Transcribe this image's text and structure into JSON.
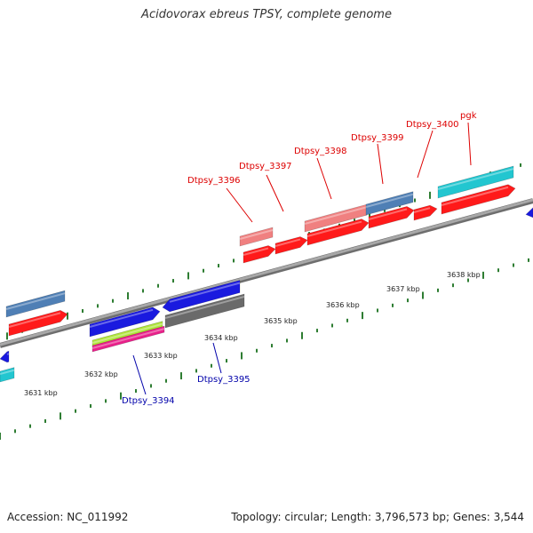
{
  "title": "Acidovorax ebreus TPSY, complete genome",
  "footer": {
    "accession": "Accession: NC_011992",
    "summary": "Topology: circular; Length: 3,796,573 bp; Genes: 3,544"
  },
  "colors": {
    "backbone": "#8c8c8c",
    "tick": "#2e7d32",
    "label_top": "#dd0000",
    "label_bottom": "#0000aa",
    "red": "#ff1a1a",
    "blue": "#1a1adf",
    "steel": "#4f7fb5",
    "pink": "#f08080",
    "cyan": "#22c6d0",
    "gray": "#6a6a6a",
    "lime": "#aee43a",
    "magenta": "#e8208a"
  },
  "scale_labels": [
    "3631 kbp",
    "3632 kbp",
    "3633 kbp",
    "3634 kbp",
    "3635 kbp",
    "3636 kbp",
    "3637 kbp",
    "3638 kbp"
  ],
  "gene_labels_top": [
    "Dtpsy_3396",
    "Dtpsy_3397",
    "Dtpsy_3398",
    "Dtpsy_3399",
    "Dtpsy_3400",
    "pgk"
  ],
  "gene_labels_bottom": [
    "Dtpsy_3394",
    "Dtpsy_3395"
  ]
}
